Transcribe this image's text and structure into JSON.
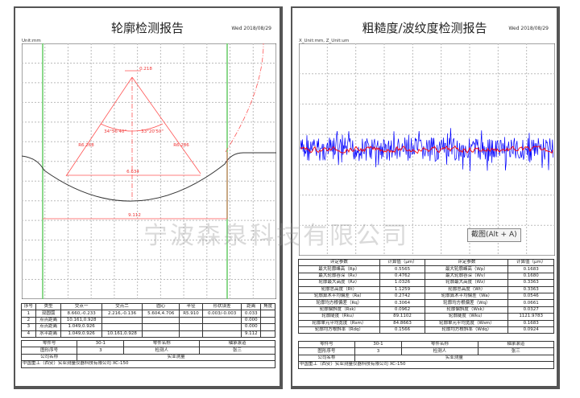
{
  "left": {
    "title": "轮廓检测报告",
    "date": "Wed 2018/08/29",
    "unit": "Unit:mm",
    "annotations": {
      "top": "0.218",
      "r_left": "R6.268",
      "r_right": "R6.286",
      "ang_left": "34°56'40\"",
      "ang_right": "33°20'50\"",
      "chord": "6.634",
      "width": "9.112"
    },
    "headers": [
      "序号",
      "类型",
      "交点一",
      "交点二",
      "圆心",
      "半径",
      "形状误差",
      "距离",
      "角度"
    ],
    "rows": [
      [
        "1",
        "双圆弧",
        "8.660,-0.233",
        "2.216,-0.136",
        "5.604,4.706",
        "R5.910",
        "0.003/-0.003",
        "0.033",
        ""
      ],
      [
        "2",
        "点点距离",
        "10.161,0.928",
        "",
        "",
        "",
        "",
        "0.000",
        ""
      ],
      [
        "3",
        "点点距离",
        "1.049,0.926",
        "",
        "",
        "",
        "",
        "0.000",
        ""
      ],
      [
        "4",
        "水平距离",
        "1.049,0.926",
        "10.161,0.928",
        "",
        "",
        "",
        "9.112",
        ""
      ]
    ],
    "info": {
      "part_no_label": "零件号",
      "part_no": "30-1",
      "part_name_label": "零件名称",
      "part_name": "轴承滚道",
      "fig_label": "图形序号",
      "fig": "3",
      "inspector_label": "检测人",
      "inspector": "张三",
      "company_label": "公司名称",
      "company": "实业测量"
    },
    "footer": "中国重工（西安）实业测量仪器科技有限公司 XC-150"
  },
  "right": {
    "title": "粗糙度/波纹度检测报告",
    "date": "Wed 2018/08/29",
    "unit": "X_Unit:mm, Z_Unit:um",
    "headers": [
      "评定参数",
      "计算值（μm）",
      "评定参数",
      "计算值（μm）"
    ],
    "rows": [
      [
        "最大轮廓峰高（Rp）",
        "0.5565",
        "最大轮廓峰高（Wp）",
        "0.1683"
      ],
      [
        "最大轮廓谷深（Rv）",
        "0.4762",
        "最大轮廓谷深（Wv）",
        "0.1680"
      ],
      [
        "轮廓最大高度（Rz）",
        "1.0326",
        "轮廓最大高度（Wz）",
        "0.3363"
      ],
      [
        "轮廓总高度（Rt）",
        "1.1259",
        "轮廓总高度（Wt）",
        "0.3363"
      ],
      [
        "轮廓算术平均偏差（Ra）",
        "0.2742",
        "轮廓算术平均偏差（Wa）",
        "0.0546"
      ],
      [
        "轮廓均方根偏差（Rq）",
        "0.3064",
        "轮廓均方根偏差（Wq）",
        "0.0661"
      ],
      [
        "轮廓偏斜度（Rsk）",
        "0.0962",
        "轮廓偏斜度（Wsk）",
        "0.0327"
      ],
      [
        "轮廓陡度（Rku）",
        "89.1102",
        "轮廓陡度（Wku）",
        "1121.9783"
      ],
      [
        "轮廓单元平均宽度（Rsm）",
        "84.8663",
        "轮廓单元平均宽度（Wsm）",
        "0.1683"
      ],
      [
        "轮廓均方根斜率（Rdq）",
        "0.1566",
        "轮廓均方根斜率（Wdq）",
        "0.0924"
      ]
    ],
    "info": {
      "part_no_label": "零件号",
      "part_no": "30-1",
      "part_name_label": "零件名称",
      "part_name": "轴承滚道",
      "fig_label": "图形序号",
      "fig": "3",
      "inspector_label": "检测人",
      "inspector": "张三",
      "company_label": "公司名称",
      "company": "实业测量"
    },
    "footer": "中国重工（西安）实业测量仪器科技有限公司 XC-150",
    "colors": {
      "raw": "#0000ff",
      "filtered": "#ff0000"
    }
  },
  "watermark": "宁波森泉科技有限公司",
  "tooltip": "截图(Alt + A)"
}
